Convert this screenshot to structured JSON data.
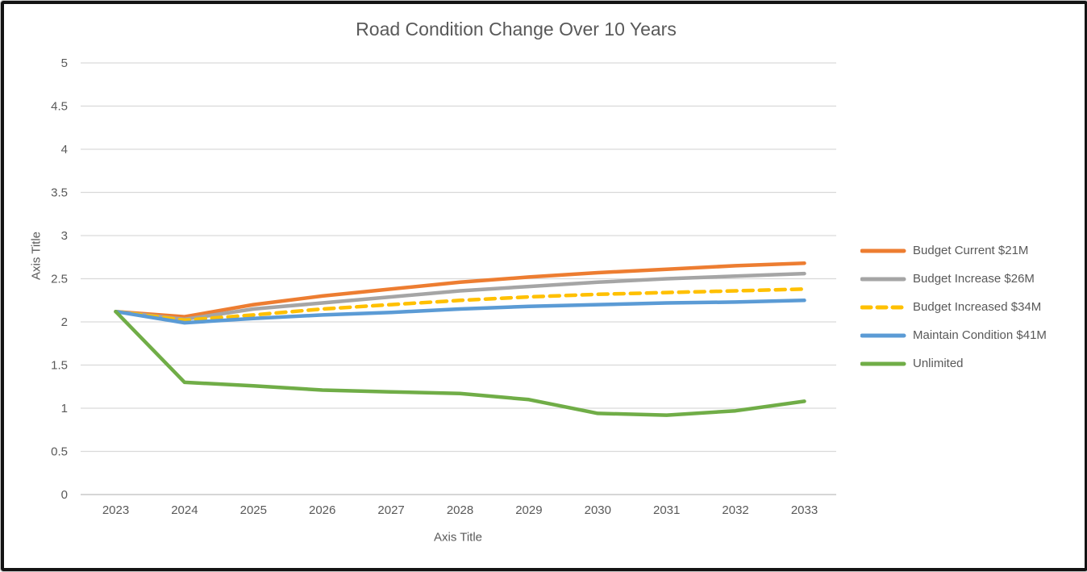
{
  "chart_data": {
    "type": "line",
    "title": "Road Condition Change Over 10 Years",
    "xlabel": "Axis Title",
    "ylabel": "Axis Title",
    "categories": [
      "2023",
      "2024",
      "2025",
      "2026",
      "2027",
      "2028",
      "2029",
      "2030",
      "2031",
      "2032",
      "2033"
    ],
    "ylim": [
      0,
      5
    ],
    "ytick_step": 0.5,
    "grid": true,
    "legend_position": "right",
    "series": [
      {
        "name": "Budget Current $21M",
        "color": "#ED7D31",
        "dash": "solid",
        "values": [
          2.12,
          2.06,
          2.2,
          2.3,
          2.38,
          2.46,
          2.52,
          2.57,
          2.61,
          2.65,
          2.68
        ]
      },
      {
        "name": "Budget Increase $26M",
        "color": "#A5A5A5",
        "dash": "solid",
        "values": [
          2.12,
          2.03,
          2.15,
          2.22,
          2.29,
          2.36,
          2.41,
          2.46,
          2.5,
          2.53,
          2.56
        ]
      },
      {
        "name": "Budget Increased $34M",
        "color": "#FFC000",
        "dash": "dashed",
        "values": [
          2.12,
          2.02,
          2.08,
          2.15,
          2.2,
          2.25,
          2.29,
          2.32,
          2.34,
          2.36,
          2.38
        ]
      },
      {
        "name": "Maintain Condition $41M",
        "color": "#5B9BD5",
        "dash": "solid",
        "values": [
          2.12,
          1.99,
          2.04,
          2.08,
          2.11,
          2.15,
          2.18,
          2.2,
          2.22,
          2.23,
          2.25
        ]
      },
      {
        "name": "Unlimited",
        "color": "#70AD47",
        "dash": "solid",
        "values": [
          2.12,
          1.3,
          1.26,
          1.21,
          1.19,
          1.17,
          1.1,
          0.94,
          0.92,
          0.97,
          1.08
        ]
      }
    ],
    "colors": {
      "text": "#595959",
      "grid": "#D9D9D9",
      "axis_line": "#C9C9C9"
    }
  }
}
